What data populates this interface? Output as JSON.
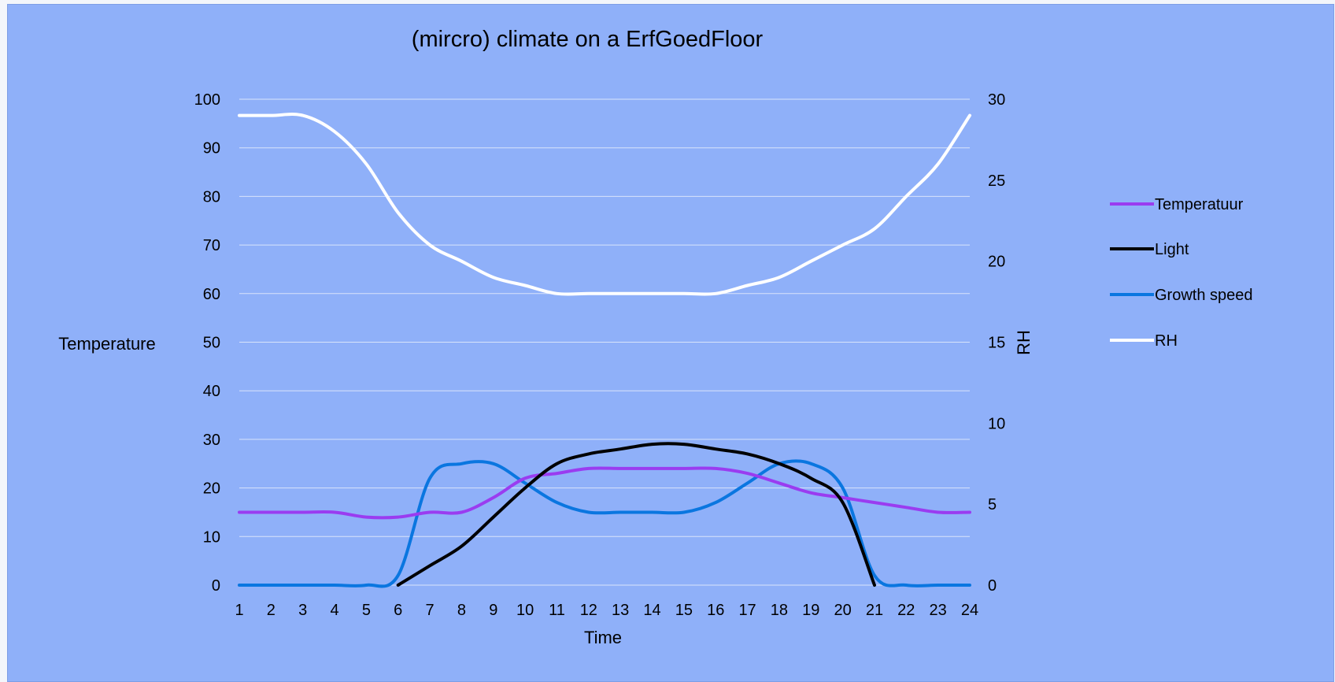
{
  "chart_data": {
    "type": "line",
    "title": "(mircro) climate on a ErfGoedFloor",
    "xlabel": "Time",
    "ylabel": "Temperature",
    "y2label": "RH",
    "x": [
      1,
      2,
      3,
      4,
      5,
      6,
      7,
      8,
      9,
      10,
      11,
      12,
      13,
      14,
      15,
      16,
      17,
      18,
      19,
      20,
      21,
      22,
      23,
      24
    ],
    "ylim": [
      0,
      100
    ],
    "yticks": [
      0,
      10,
      20,
      30,
      40,
      50,
      60,
      70,
      80,
      90,
      100
    ],
    "y2lim": [
      0,
      30
    ],
    "y2ticks": [
      0,
      5,
      10,
      15,
      20,
      25,
      30
    ],
    "grid": true,
    "legend_position": "right",
    "series": [
      {
        "name": "Temperatuur",
        "axis": "left",
        "color": "#9a3cf0",
        "values": [
          15,
          15,
          15,
          15,
          14,
          14,
          15,
          15,
          18,
          22,
          23,
          24,
          24,
          24,
          24,
          24,
          23,
          21,
          19,
          18,
          17,
          16,
          15,
          15
        ]
      },
      {
        "name": "Light",
        "axis": "left",
        "color": "#000000",
        "values": [
          null,
          null,
          null,
          null,
          null,
          0,
          4,
          8,
          14,
          20,
          25,
          27,
          28,
          29,
          29,
          28,
          27,
          25,
          22,
          17,
          0,
          null,
          null,
          null
        ]
      },
      {
        "name": "Growth speed",
        "axis": "left",
        "color": "#0a76e0",
        "values": [
          0,
          0,
          0,
          0,
          0,
          2,
          22,
          25,
          25,
          21,
          17,
          15,
          15,
          15,
          15,
          17,
          21,
          25,
          25,
          20,
          2,
          0,
          0,
          0
        ]
      },
      {
        "name": "RH",
        "axis": "right",
        "color": "#ffffff",
        "values": [
          29,
          29,
          29,
          28,
          26,
          23,
          21,
          20,
          19,
          18.5,
          18,
          18,
          18,
          18,
          18,
          18,
          18.5,
          19,
          20,
          21,
          22,
          24,
          26,
          29
        ]
      }
    ]
  }
}
